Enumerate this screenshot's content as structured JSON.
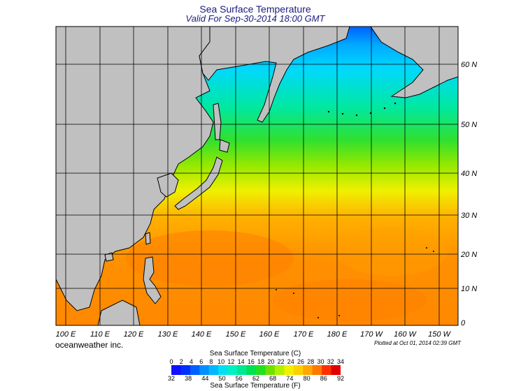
{
  "header": {
    "title": "Sea Surface Temperature",
    "subtitle": "Valid For Sep-30-2014 18:00 GMT"
  },
  "map": {
    "region": "Northwest Pacific",
    "lat_labels": [
      "60 N",
      "50 N",
      "40 N",
      "30 N",
      "20 N",
      "10 N",
      "0"
    ],
    "lon_labels": [
      "100 E",
      "110 E",
      "120 E",
      "130 E",
      "140 E",
      "150 E",
      "160 E",
      "170 E",
      "180 E",
      "170 W",
      "160 W",
      "150 W"
    ],
    "land_color": "#c0c0c0",
    "grid_color": "#000000"
  },
  "footer": {
    "credit": "oceanweather inc.",
    "plotted": "Plotted at Oct 01, 2014 02:39 GMT"
  },
  "colorscale": {
    "title_c": "Sea Surface Temperature (C)",
    "title_f": "Sea Surface Temperature (F)",
    "celsius_ticks": [
      "0",
      "2",
      "4",
      "6",
      "8",
      "10",
      "12",
      "14",
      "16",
      "18",
      "20",
      "22",
      "24",
      "26",
      "28",
      "30",
      "32",
      "34"
    ],
    "fahrenheit_ticks": [
      "32",
      "38",
      "44",
      "50",
      "56",
      "62",
      "68",
      "74",
      "80",
      "86",
      "92"
    ],
    "colors": [
      "#1010ff",
      "#0030ff",
      "#0060ff",
      "#0090ff",
      "#00b8ff",
      "#00e0f0",
      "#00f0c0",
      "#00e890",
      "#00e050",
      "#20e020",
      "#70e000",
      "#b0f000",
      "#f0f000",
      "#ffd000",
      "#ffa800",
      "#ff7800",
      "#ff3000",
      "#e00000"
    ]
  }
}
